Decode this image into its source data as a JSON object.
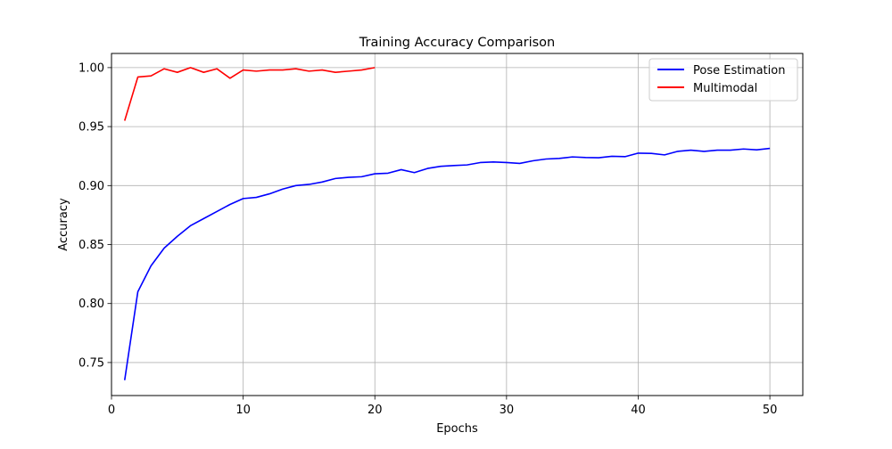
{
  "chart_data": {
    "type": "line",
    "title": "Training Accuracy Comparison",
    "xlabel": "Epochs",
    "ylabel": "Accuracy",
    "xlim": [
      0,
      52.5
    ],
    "ylim": [
      0.722,
      1.012
    ],
    "xticks": [
      0,
      10,
      20,
      30,
      40,
      50
    ],
    "yticks": [
      0.75,
      0.8,
      0.85,
      0.9,
      0.95,
      1.0
    ],
    "ytick_labels": [
      "0.75",
      "0.80",
      "0.85",
      "0.90",
      "0.95",
      "1.00"
    ],
    "grid": true,
    "legend_position": "top-right",
    "series": [
      {
        "name": "Pose Estimation",
        "color": "#0000ff",
        "x": [
          1,
          2,
          3,
          4,
          5,
          6,
          7,
          8,
          9,
          10,
          11,
          12,
          13,
          14,
          15,
          16,
          17,
          18,
          19,
          20,
          21,
          22,
          23,
          24,
          25,
          26,
          27,
          28,
          29,
          30,
          31,
          32,
          33,
          34,
          35,
          36,
          37,
          38,
          39,
          40,
          41,
          42,
          43,
          44,
          45,
          46,
          47,
          48,
          49,
          50
        ],
        "values": [
          0.735,
          0.81,
          0.832,
          0.847,
          0.857,
          0.866,
          0.872,
          0.878,
          0.884,
          0.889,
          0.89,
          0.893,
          0.897,
          0.9,
          0.901,
          0.903,
          0.906,
          0.907,
          0.9075,
          0.91,
          0.9105,
          0.9135,
          0.911,
          0.9145,
          0.9163,
          0.917,
          0.9175,
          0.9195,
          0.92,
          0.9195,
          0.9188,
          0.921,
          0.9225,
          0.923,
          0.9243,
          0.9238,
          0.9236,
          0.9248,
          0.9245,
          0.9275,
          0.9273,
          0.926,
          0.929,
          0.93,
          0.929,
          0.93,
          0.93,
          0.931,
          0.9303,
          0.9315
        ]
      },
      {
        "name": "Multimodal",
        "color": "#ff0000",
        "x": [
          1,
          2,
          3,
          4,
          5,
          6,
          7,
          8,
          9,
          10,
          11,
          12,
          13,
          14,
          15,
          16,
          17,
          18,
          19,
          20
        ],
        "values": [
          0.955,
          0.992,
          0.993,
          0.999,
          0.996,
          1.0,
          0.996,
          0.999,
          0.991,
          0.998,
          0.997,
          0.998,
          0.998,
          0.999,
          0.997,
          0.998,
          0.996,
          0.997,
          0.998,
          1.0
        ]
      }
    ]
  }
}
